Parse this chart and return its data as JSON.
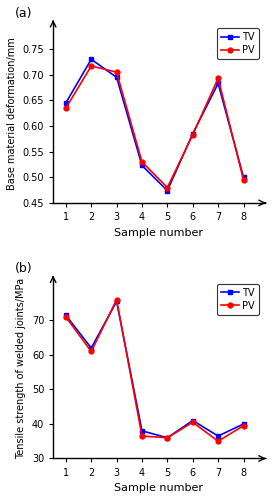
{
  "subplot_a": {
    "label": "(a)",
    "x": [
      1,
      2,
      3,
      4,
      5,
      6,
      7,
      8
    ],
    "TV": [
      0.645,
      0.73,
      0.695,
      0.523,
      0.474,
      0.585,
      0.683,
      0.5
    ],
    "PV": [
      0.635,
      0.717,
      0.705,
      0.53,
      0.48,
      0.583,
      0.693,
      0.495
    ],
    "ylabel": "Base material deformation/mm",
    "xlabel": "Sample number",
    "ylim": [
      0.45,
      0.8
    ],
    "yticks": [
      0.45,
      0.5,
      0.55,
      0.6,
      0.65,
      0.7,
      0.75
    ]
  },
  "subplot_b": {
    "label": "(b)",
    "x": [
      1,
      2,
      3,
      4,
      5,
      6,
      7,
      8
    ],
    "TV": [
      71.5,
      62.0,
      75.5,
      38.0,
      36.0,
      41.0,
      36.5,
      40.0
    ],
    "PV": [
      71.0,
      61.0,
      76.0,
      36.5,
      36.0,
      40.5,
      35.0,
      39.5
    ],
    "ylabel": "Tensile strength of welded joints/MPa",
    "xlabel": "Sample number",
    "ylim": [
      30,
      82
    ],
    "yticks": [
      30,
      40,
      50,
      60,
      70
    ]
  },
  "TV_color": "#0000FF",
  "PV_color": "#FF0000",
  "TV_marker": "s",
  "PV_marker": "o",
  "linewidth": 1.2,
  "markersize": 3.5
}
